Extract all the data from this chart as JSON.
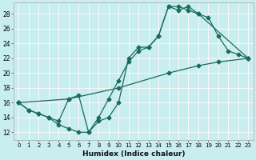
{
  "xlabel": "Humidex (Indice chaleur)",
  "background_color": "#c8eef0",
  "grid_color_major": "#ffffff",
  "grid_color_minor": "#e8c8c8",
  "line_color": "#1a6b5a",
  "xlim": [
    -0.5,
    23.5
  ],
  "ylim": [
    11,
    29.5
  ],
  "xticks": [
    0,
    1,
    2,
    3,
    4,
    5,
    6,
    7,
    8,
    9,
    10,
    11,
    12,
    13,
    14,
    15,
    16,
    17,
    18,
    19,
    20,
    21,
    22,
    23
  ],
  "yticks": [
    12,
    14,
    16,
    18,
    20,
    22,
    24,
    26,
    28
  ],
  "line1_x": [
    0,
    1,
    2,
    3,
    4,
    5,
    6,
    7,
    8,
    9,
    10,
    11,
    12,
    13,
    14,
    15,
    16,
    17,
    18,
    19,
    20,
    21,
    22,
    23
  ],
  "line1_y": [
    16,
    15,
    14.5,
    14,
    13,
    12.5,
    12,
    12,
    14,
    16.5,
    19,
    21.5,
    23,
    23.5,
    25,
    29,
    29,
    28.5,
    28,
    27.5,
    25,
    23,
    22.5,
    22
  ],
  "line2_x": [
    0,
    1,
    2,
    3,
    4,
    5,
    6,
    7,
    8,
    9,
    10,
    11,
    12,
    13,
    14,
    15,
    16,
    17,
    18,
    23
  ],
  "line2_y": [
    16,
    15,
    14.5,
    14,
    13.5,
    16.5,
    17,
    12,
    13.5,
    14,
    16,
    22,
    23.5,
    23.5,
    25,
    29,
    28.5,
    29,
    28,
    22
  ],
  "line3_x": [
    0,
    5,
    10,
    15,
    18,
    20,
    23
  ],
  "line3_y": [
    16,
    16.5,
    18,
    20,
    21,
    21.5,
    22
  ]
}
